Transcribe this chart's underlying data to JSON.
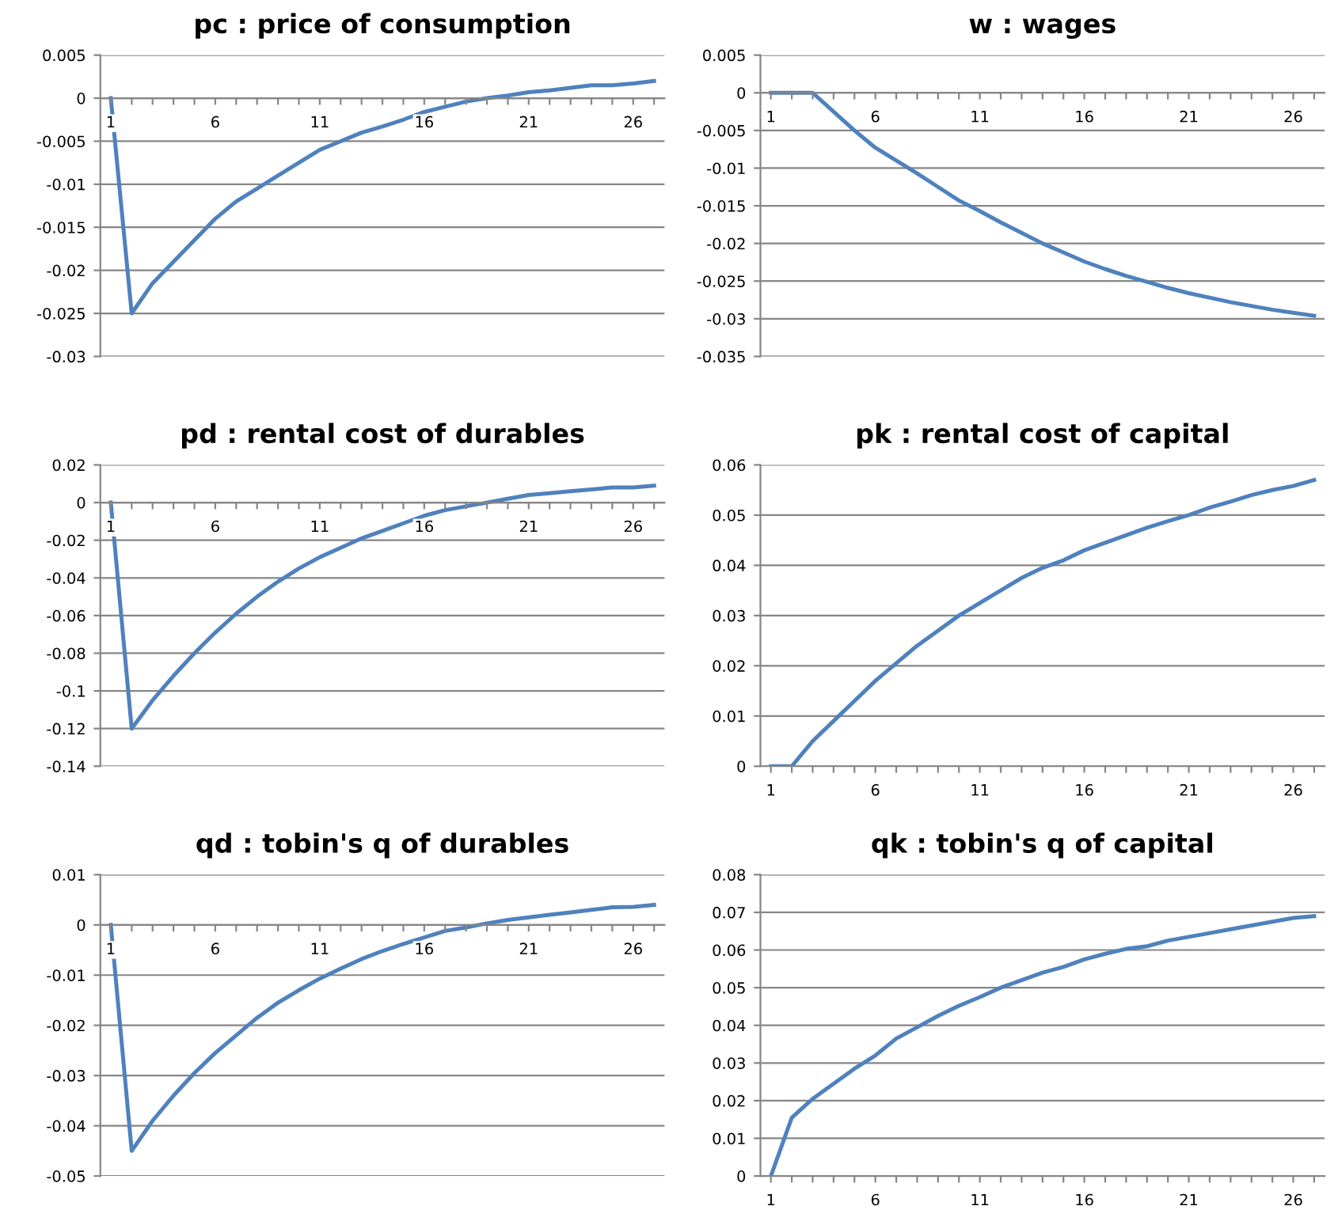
{
  "chart_data": [
    {
      "type": "line",
      "title": "pc : price of consumption",
      "categories": [
        "1",
        null,
        null,
        null,
        null,
        "6",
        null,
        null,
        null,
        null,
        "11",
        null,
        null,
        null,
        null,
        "16",
        null,
        null,
        null,
        null,
        "21",
        null,
        null,
        null,
        null,
        "26",
        null
      ],
      "series": [
        {
          "color": "#4f81bd",
          "values": [
            0,
            -0.025,
            -0.0215,
            -0.019,
            -0.0165,
            -0.014,
            -0.012,
            -0.0105,
            -0.009,
            -0.0075,
            -0.006,
            -0.005,
            -0.004,
            -0.0033,
            -0.0025,
            -0.0016,
            -0.001,
            -0.0004,
            0,
            0.0003,
            0.0007,
            0.0009,
            0.0012,
            0.0015,
            0.0015,
            0.0017,
            0.002
          ]
        }
      ],
      "ylim": [
        -0.03,
        0.005
      ],
      "yticks": [
        -0.03,
        -0.025,
        -0.02,
        -0.015,
        -0.01,
        -0.005,
        0,
        0.005
      ],
      "grid": "y",
      "marker": "none",
      "line_style": "solid"
    },
    {
      "type": "line",
      "title": "w : wages",
      "categories": [
        "1",
        null,
        null,
        null,
        null,
        "6",
        null,
        null,
        null,
        null,
        "11",
        null,
        null,
        null,
        null,
        "16",
        null,
        null,
        null,
        null,
        "21",
        null,
        null,
        null,
        null,
        "26",
        null
      ],
      "series": [
        {
          "color": "#4f81bd",
          "values": [
            0,
            0,
            0,
            -0.0025,
            -0.005,
            -0.0073,
            -0.009,
            -0.0107,
            -0.0125,
            -0.0143,
            -0.0157,
            -0.0172,
            -0.0186,
            -0.02,
            -0.0212,
            -0.0224,
            -0.0234,
            -0.0243,
            -0.0251,
            -0.0259,
            -0.0266,
            -0.0272,
            -0.0278,
            -0.0283,
            -0.0288,
            -0.0292,
            -0.0296
          ]
        }
      ],
      "ylim": [
        -0.035,
        0.005
      ],
      "yticks": [
        -0.035,
        -0.03,
        -0.025,
        -0.02,
        -0.015,
        -0.01,
        -0.005,
        0,
        0.005
      ],
      "grid": "y",
      "marker": "none",
      "line_style": "solid"
    },
    {
      "type": "line",
      "title": "pd : rental cost of durables",
      "categories": [
        "1",
        null,
        null,
        null,
        null,
        "6",
        null,
        null,
        null,
        null,
        "11",
        null,
        null,
        null,
        null,
        "16",
        null,
        null,
        null,
        null,
        "21",
        null,
        null,
        null,
        null,
        "26",
        null
      ],
      "series": [
        {
          "color": "#4f81bd",
          "values": [
            0,
            -0.12,
            -0.105,
            -0.092,
            -0.08,
            -0.069,
            -0.059,
            -0.05,
            -0.042,
            -0.035,
            -0.029,
            -0.024,
            -0.019,
            -0.015,
            -0.011,
            -0.007,
            -0.004,
            -0.002,
            0,
            0.002,
            0.004,
            0.005,
            0.006,
            0.007,
            0.008,
            0.008,
            0.009
          ]
        }
      ],
      "ylim": [
        -0.14,
        0.02
      ],
      "yticks": [
        -0.14,
        -0.12,
        -0.1,
        -0.08,
        -0.06,
        -0.04,
        -0.02,
        0,
        0.02
      ],
      "grid": "y",
      "marker": "none",
      "line_style": "solid"
    },
    {
      "type": "line",
      "title": "pk : rental cost of capital",
      "categories": [
        "1",
        null,
        null,
        null,
        null,
        "6",
        null,
        null,
        null,
        null,
        "11",
        null,
        null,
        null,
        null,
        "16",
        null,
        null,
        null,
        null,
        "21",
        null,
        null,
        null,
        null,
        "26",
        null
      ],
      "series": [
        {
          "color": "#4f81bd",
          "values": [
            0,
            0,
            0.005,
            0.009,
            0.013,
            0.017,
            0.0205,
            0.024,
            0.027,
            0.03,
            0.0325,
            0.035,
            0.0375,
            0.0395,
            0.041,
            0.043,
            0.0445,
            0.046,
            0.0475,
            0.0488,
            0.05,
            0.0515,
            0.0527,
            0.054,
            0.055,
            0.0558,
            0.057
          ]
        }
      ],
      "ylim": [
        0,
        0.06
      ],
      "yticks": [
        0,
        0.01,
        0.02,
        0.03,
        0.04,
        0.05,
        0.06
      ],
      "grid": "y",
      "marker": "none",
      "line_style": "solid"
    },
    {
      "type": "line",
      "title": "qd : tobin's q of durables",
      "categories": [
        "1",
        null,
        null,
        null,
        null,
        "6",
        null,
        null,
        null,
        null,
        "11",
        null,
        null,
        null,
        null,
        "16",
        null,
        null,
        null,
        null,
        "21",
        null,
        null,
        null,
        null,
        "26",
        null
      ],
      "series": [
        {
          "color": "#4f81bd",
          "values": [
            0,
            -0.045,
            -0.039,
            -0.034,
            -0.0295,
            -0.0255,
            -0.022,
            -0.0185,
            -0.0155,
            -0.013,
            -0.0107,
            -0.0087,
            -0.0068,
            -0.0052,
            -0.0038,
            -0.0025,
            -0.0012,
            -0.0005,
            0.0003,
            0.001,
            0.0015,
            0.002,
            0.0025,
            0.003,
            0.0035,
            0.0036,
            0.004
          ]
        }
      ],
      "ylim": [
        -0.05,
        0.01
      ],
      "yticks": [
        -0.05,
        -0.04,
        -0.03,
        -0.02,
        -0.01,
        0,
        0.01
      ],
      "grid": "y",
      "marker": "none",
      "line_style": "solid"
    },
    {
      "type": "line",
      "title": "qk : tobin's q of capital",
      "categories": [
        "1",
        null,
        null,
        null,
        null,
        "6",
        null,
        null,
        null,
        null,
        "11",
        null,
        null,
        null,
        null,
        "16",
        null,
        null,
        null,
        null,
        "21",
        null,
        null,
        null,
        null,
        "26",
        null
      ],
      "series": [
        {
          "color": "#4f81bd",
          "values": [
            0,
            0.0155,
            0.0205,
            0.0245,
            0.0285,
            0.032,
            0.0365,
            0.0395,
            0.0425,
            0.0452,
            0.0475,
            0.05,
            0.052,
            0.054,
            0.0555,
            0.0575,
            0.059,
            0.0603,
            0.061,
            0.0625,
            0.0635,
            0.0645,
            0.0655,
            0.0665,
            0.0675,
            0.0685,
            0.069
          ]
        }
      ],
      "ylim": [
        0,
        0.08
      ],
      "yticks": [
        0,
        0.01,
        0.02,
        0.03,
        0.04,
        0.05,
        0.06,
        0.07,
        0.08
      ],
      "grid": "y",
      "marker": "none",
      "line_style": "solid"
    }
  ]
}
